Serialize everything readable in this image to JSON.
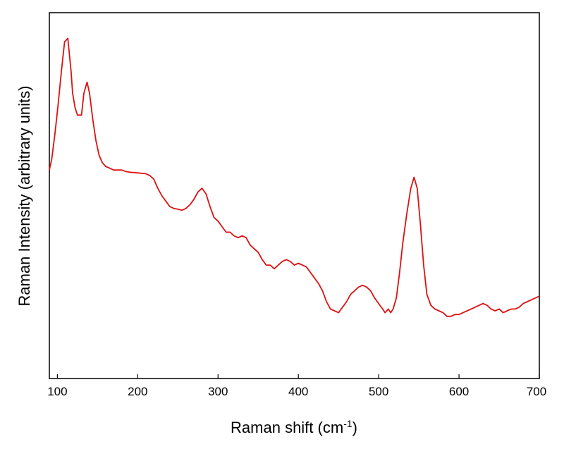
{
  "chart_data": {
    "type": "line",
    "title": "",
    "xlabel": "Raman shift (cm",
    "xlabel_superscript": "-1",
    "xlabel_suffix": ")",
    "ylabel": "Raman Intensity (arbitrary units)",
    "xlim": [
      90,
      700
    ],
    "ylim": [
      0,
      1
    ],
    "y_ticks_shown": false,
    "grid": false,
    "legend": "none",
    "x_ticks": [
      100,
      200,
      300,
      400,
      500,
      600,
      700
    ],
    "series": [
      {
        "color": "#dd1111",
        "x": [
          90,
          93,
          97,
          101,
          105,
          109,
          113,
          117,
          119,
          122,
          125,
          130,
          133,
          137,
          140,
          144,
          148,
          152,
          156,
          160,
          165,
          170,
          175,
          180,
          185,
          190,
          200,
          210,
          215,
          220,
          225,
          230,
          235,
          240,
          245,
          250,
          255,
          260,
          265,
          270,
          275,
          280,
          285,
          290,
          295,
          300,
          305,
          310,
          315,
          320,
          325,
          330,
          335,
          340,
          345,
          350,
          355,
          360,
          365,
          370,
          375,
          380,
          385,
          390,
          395,
          400,
          405,
          410,
          415,
          420,
          425,
          430,
          435,
          440,
          445,
          450,
          455,
          460,
          465,
          470,
          475,
          480,
          485,
          490,
          495,
          500,
          505,
          508,
          512,
          515,
          518,
          522,
          526,
          530,
          535,
          540,
          544,
          548,
          552,
          556,
          560,
          565,
          570,
          575,
          580,
          585,
          590,
          595,
          600,
          605,
          610,
          615,
          620,
          625,
          630,
          635,
          640,
          645,
          650,
          655,
          660,
          665,
          670,
          675,
          680,
          685,
          690,
          695,
          700
        ],
        "y": [
          0.57,
          0.6,
          0.67,
          0.75,
          0.84,
          0.92,
          0.93,
          0.84,
          0.78,
          0.74,
          0.72,
          0.72,
          0.78,
          0.81,
          0.78,
          0.71,
          0.65,
          0.61,
          0.59,
          0.58,
          0.575,
          0.57,
          0.57,
          0.57,
          0.566,
          0.564,
          0.562,
          0.56,
          0.555,
          0.545,
          0.52,
          0.5,
          0.485,
          0.47,
          0.465,
          0.463,
          0.46,
          0.465,
          0.475,
          0.49,
          0.51,
          0.52,
          0.505,
          0.47,
          0.44,
          0.43,
          0.415,
          0.4,
          0.4,
          0.39,
          0.385,
          0.39,
          0.385,
          0.365,
          0.355,
          0.345,
          0.325,
          0.31,
          0.31,
          0.3,
          0.31,
          0.32,
          0.325,
          0.32,
          0.31,
          0.315,
          0.31,
          0.305,
          0.29,
          0.275,
          0.26,
          0.24,
          0.21,
          0.19,
          0.185,
          0.18,
          0.195,
          0.21,
          0.23,
          0.24,
          0.25,
          0.255,
          0.25,
          0.24,
          0.22,
          0.205,
          0.19,
          0.18,
          0.19,
          0.18,
          0.19,
          0.22,
          0.29,
          0.37,
          0.45,
          0.52,
          0.55,
          0.52,
          0.42,
          0.31,
          0.23,
          0.2,
          0.19,
          0.185,
          0.18,
          0.17,
          0.17,
          0.175,
          0.175,
          0.18,
          0.185,
          0.19,
          0.195,
          0.2,
          0.205,
          0.2,
          0.19,
          0.185,
          0.19,
          0.18,
          0.185,
          0.19,
          0.19,
          0.195,
          0.205,
          0.21,
          0.215,
          0.22,
          0.225
        ]
      }
    ]
  }
}
